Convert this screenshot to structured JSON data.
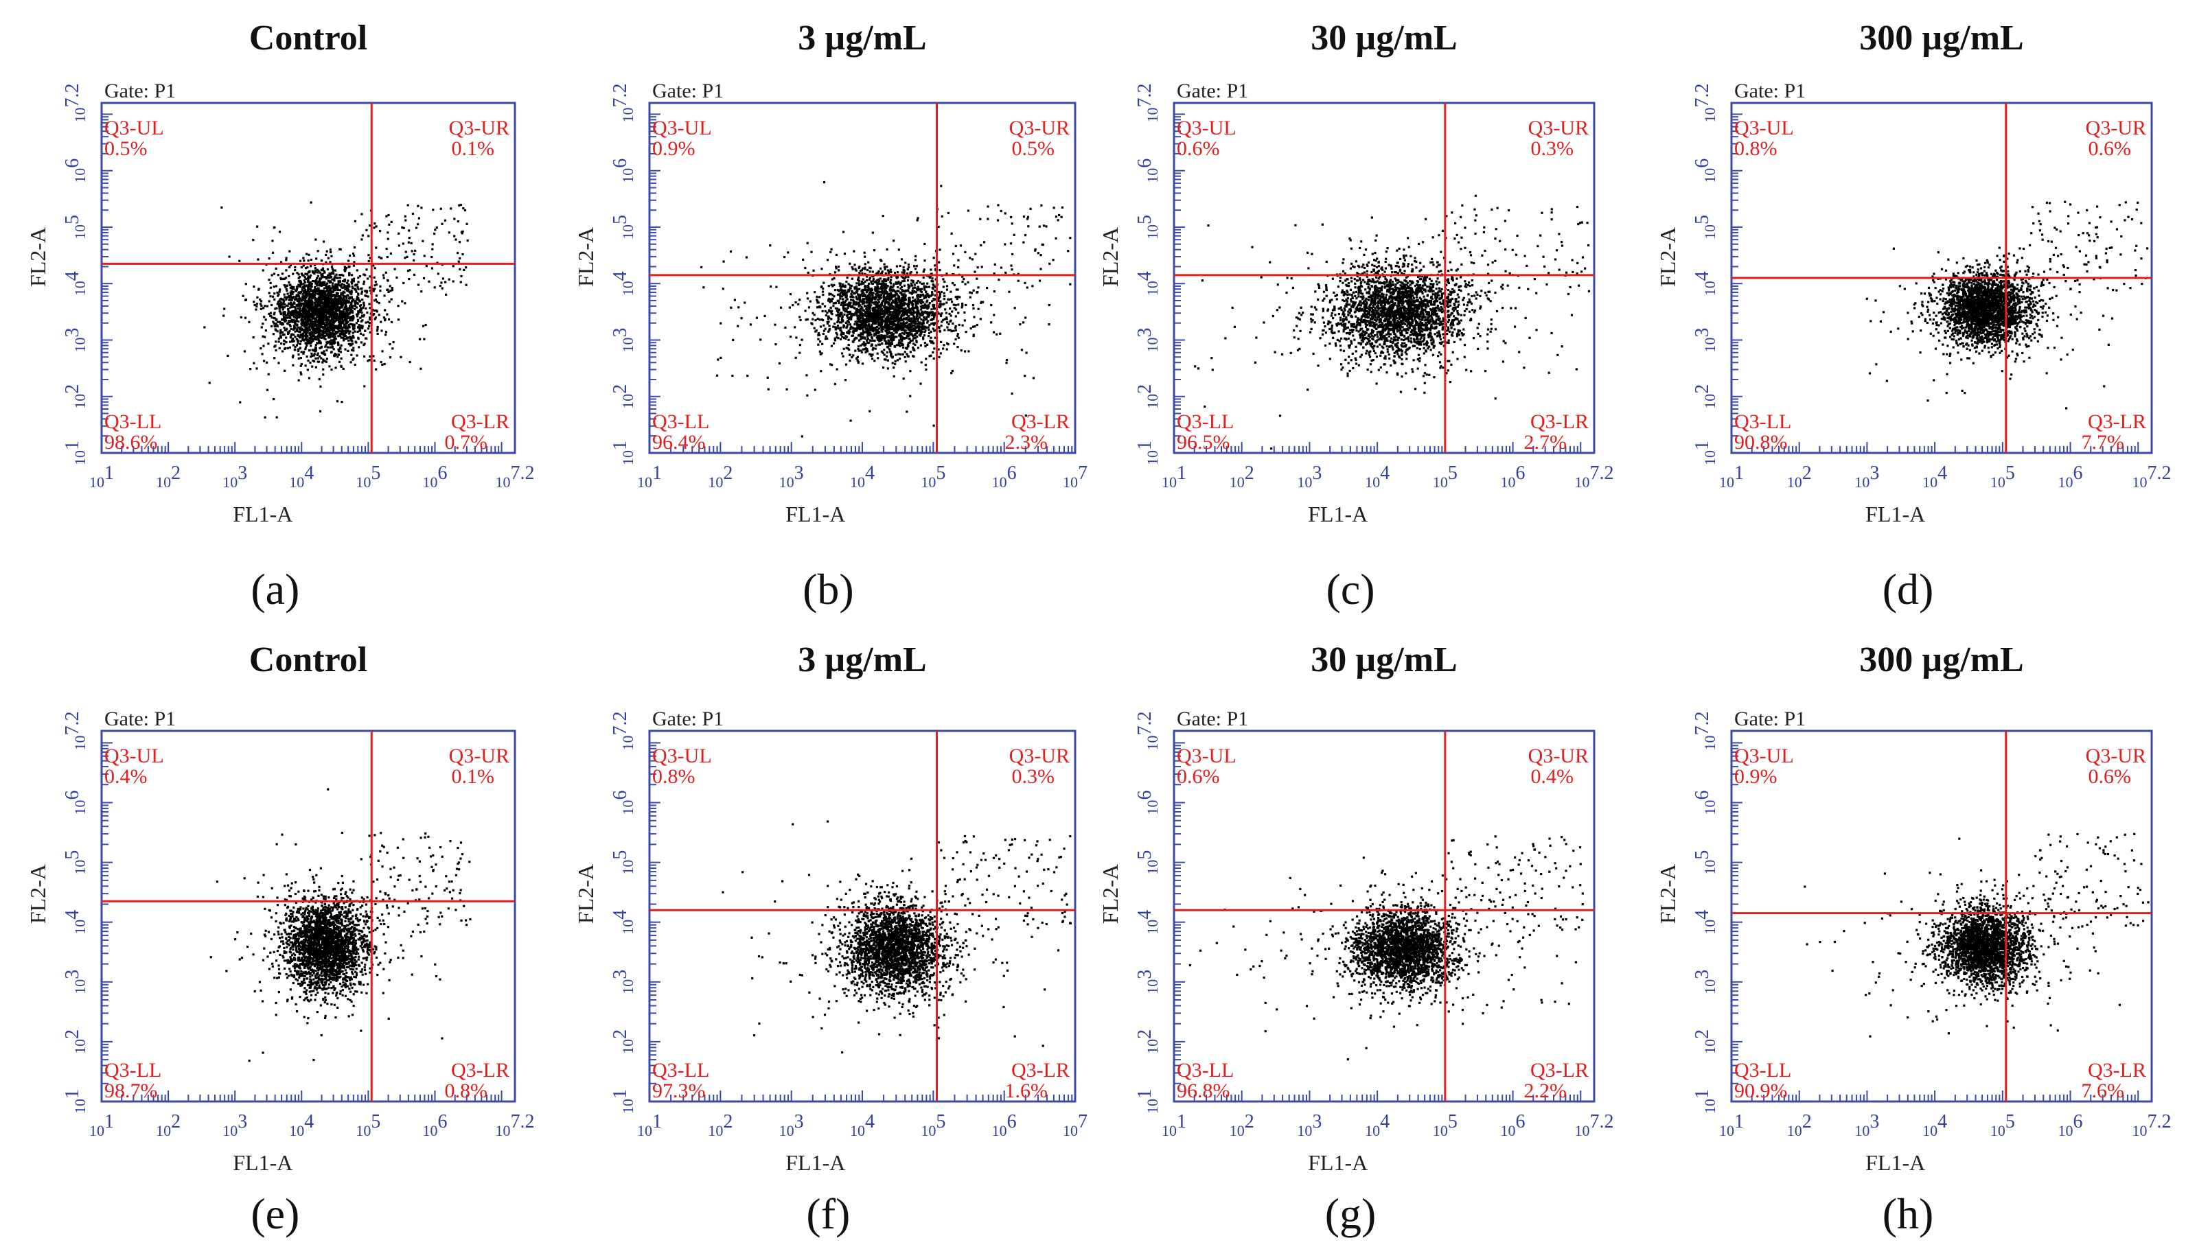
{
  "figure": {
    "caption": "Flow cytometry dot plots (FL1-A vs FL2-A) for control and three concentrations; two experiment rows.",
    "colors": {
      "gate": "#e11d1d",
      "axis": "#3b4aa8",
      "dots": "#000000",
      "text": "#111111"
    }
  },
  "chart_data": [
    {
      "type": "scatter",
      "panel": "(a)",
      "title": "Control",
      "gate": "Gate: P1",
      "xlabel": "FL1-A",
      "ylabel": "FL2-A",
      "x_ticks": [
        "1",
        "2",
        "3",
        "4",
        "5",
        "6",
        "7.2"
      ],
      "y_ticks": [
        "1",
        "2",
        "3",
        "4",
        "5",
        "6",
        "7.2"
      ],
      "xlim": [
        1,
        7.2
      ],
      "ylim": [
        1,
        7.2
      ],
      "quadrant_gate": {
        "x": 5.05,
        "y": 4.35
      },
      "quadrants": {
        "UL": {
          "label": "Q3-UL",
          "value": "0.5%"
        },
        "UR": {
          "label": "Q3-UR",
          "value": "0.1%"
        },
        "LL": {
          "label": "Q3-LL",
          "value": "98.6%"
        },
        "LR": {
          "label": "Q3-LR",
          "value": "0.7%"
        }
      },
      "cluster": {
        "cx": 4.3,
        "cy": 3.5,
        "sx": 0.35,
        "sy": 0.38,
        "spread": 1.0
      }
    },
    {
      "type": "scatter",
      "panel": "(b)",
      "title": "3 µg/mL",
      "gate": "Gate: P1",
      "xlabel": "FL1-A",
      "ylabel": "FL2-A",
      "x_ticks": [
        "1",
        "2",
        "3",
        "4",
        "5",
        "6",
        "7"
      ],
      "y_ticks": [
        "1",
        "2",
        "3",
        "4",
        "5",
        "6",
        "7.2"
      ],
      "xlim": [
        1,
        7
      ],
      "ylim": [
        1,
        7.2
      ],
      "quadrant_gate": {
        "x": 5.05,
        "y": 4.15
      },
      "quadrants": {
        "UL": {
          "label": "Q3-UL",
          "value": "0.9%"
        },
        "UR": {
          "label": "Q3-UR",
          "value": "0.5%"
        },
        "LL": {
          "label": "Q3-LL",
          "value": "96.4%"
        },
        "LR": {
          "label": "Q3-LR",
          "value": "2.3%"
        }
      },
      "cluster": {
        "cx": 4.35,
        "cy": 3.5,
        "sx": 0.45,
        "sy": 0.38,
        "spread": 1.4
      }
    },
    {
      "type": "scatter",
      "panel": "(c)",
      "title": "30 µg/mL",
      "gate": "Gate: P1",
      "xlabel": "FL1-A",
      "ylabel": "FL2-A",
      "x_ticks": [
        "1",
        "2",
        "3",
        "4",
        "5",
        "6",
        "7.2"
      ],
      "y_ticks": [
        "1",
        "2",
        "3",
        "4",
        "5",
        "6",
        "7.2"
      ],
      "xlim": [
        1,
        7.2
      ],
      "ylim": [
        1,
        7.2
      ],
      "quadrant_gate": {
        "x": 5.0,
        "y": 4.15
      },
      "quadrants": {
        "UL": {
          "label": "Q3-UL",
          "value": "0.6%"
        },
        "UR": {
          "label": "Q3-UR",
          "value": "0.3%"
        },
        "LL": {
          "label": "Q3-LL",
          "value": "96.5%"
        },
        "LR": {
          "label": "Q3-LR",
          "value": "2.7%"
        }
      },
      "cluster": {
        "cx": 4.3,
        "cy": 3.5,
        "sx": 0.5,
        "sy": 0.4,
        "spread": 1.6
      }
    },
    {
      "type": "scatter",
      "panel": "(d)",
      "title": "300 µg/mL",
      "gate": "Gate: P1",
      "xlabel": "FL1-A",
      "ylabel": "FL2-A",
      "x_ticks": [
        "1",
        "2",
        "3",
        "4",
        "5",
        "6",
        "7.2"
      ],
      "y_ticks": [
        "1",
        "2",
        "3",
        "4",
        "5",
        "6",
        "7.2"
      ],
      "xlim": [
        1,
        7.2
      ],
      "ylim": [
        1,
        7.2
      ],
      "quadrant_gate": {
        "x": 5.05,
        "y": 4.1
      },
      "quadrants": {
        "UL": {
          "label": "Q3-UL",
          "value": "0.8%"
        },
        "UR": {
          "label": "Q3-UR",
          "value": "0.6%"
        },
        "LL": {
          "label": "Q3-LL",
          "value": "90.8%"
        },
        "LR": {
          "label": "Q3-LR",
          "value": "7.7%"
        }
      },
      "cluster": {
        "cx": 4.75,
        "cy": 3.55,
        "sx": 0.32,
        "sy": 0.32,
        "spread": 1.2
      }
    },
    {
      "type": "scatter",
      "panel": "(e)",
      "title": "Control",
      "gate": "Gate: P1",
      "xlabel": "FL1-A",
      "ylabel": "FL2-A",
      "x_ticks": [
        "1",
        "2",
        "3",
        "4",
        "5",
        "6",
        "7.2"
      ],
      "y_ticks": [
        "1",
        "2",
        "3",
        "4",
        "5",
        "6",
        "7.2"
      ],
      "xlim": [
        1,
        7.2
      ],
      "ylim": [
        1,
        7.2
      ],
      "quadrant_gate": {
        "x": 5.05,
        "y": 4.35
      },
      "quadrants": {
        "UL": {
          "label": "Q3-UL",
          "value": "0.4%"
        },
        "UR": {
          "label": "Q3-UR",
          "value": "0.1%"
        },
        "LL": {
          "label": "Q3-LL",
          "value": "98.7%"
        },
        "LR": {
          "label": "Q3-LR",
          "value": "0.8%"
        }
      },
      "cluster": {
        "cx": 4.35,
        "cy": 3.6,
        "sx": 0.3,
        "sy": 0.38,
        "spread": 1.0
      }
    },
    {
      "type": "scatter",
      "panel": "(f)",
      "title": "3 µg/mL",
      "gate": "Gate: P1",
      "xlabel": "FL1-A",
      "ylabel": "FL2-A",
      "x_ticks": [
        "1",
        "2",
        "3",
        "4",
        "5",
        "6",
        "7"
      ],
      "y_ticks": [
        "1",
        "2",
        "3",
        "4",
        "5",
        "6",
        "7.2"
      ],
      "xlim": [
        1,
        7
      ],
      "ylim": [
        1,
        7.2
      ],
      "quadrant_gate": {
        "x": 5.05,
        "y": 4.2
      },
      "quadrants": {
        "UL": {
          "label": "Q3-UL",
          "value": "0.8%"
        },
        "UR": {
          "label": "Q3-UR",
          "value": "0.3%"
        },
        "LL": {
          "label": "Q3-LL",
          "value": "97.3%"
        },
        "LR": {
          "label": "Q3-LR",
          "value": "1.6%"
        }
      },
      "cluster": {
        "cx": 4.45,
        "cy": 3.55,
        "sx": 0.35,
        "sy": 0.38,
        "spread": 1.2
      }
    },
    {
      "type": "scatter",
      "panel": "(g)",
      "title": "30 µg/mL",
      "gate": "Gate: P1",
      "xlabel": "FL1-A",
      "ylabel": "FL2-A",
      "x_ticks": [
        "1",
        "2",
        "3",
        "4",
        "5",
        "6",
        "7.2"
      ],
      "y_ticks": [
        "1",
        "2",
        "3",
        "4",
        "5",
        "6",
        "7.2"
      ],
      "xlim": [
        1,
        7.2
      ],
      "ylim": [
        1,
        7.2
      ],
      "quadrant_gate": {
        "x": 5.0,
        "y": 4.2
      },
      "quadrants": {
        "UL": {
          "label": "Q3-UL",
          "value": "0.6%"
        },
        "UR": {
          "label": "Q3-UR",
          "value": "0.4%"
        },
        "LL": {
          "label": "Q3-LL",
          "value": "96.8%"
        },
        "LR": {
          "label": "Q3-LR",
          "value": "2.2%"
        }
      },
      "cluster": {
        "cx": 4.4,
        "cy": 3.55,
        "sx": 0.38,
        "sy": 0.33,
        "spread": 1.5
      }
    },
    {
      "type": "scatter",
      "panel": "(h)",
      "title": "300 µg/mL",
      "gate": "Gate: P1",
      "xlabel": "FL1-A",
      "ylabel": "FL2-A",
      "x_ticks": [
        "1",
        "2",
        "3",
        "4",
        "5",
        "6",
        "7.2"
      ],
      "y_ticks": [
        "1",
        "2",
        "3",
        "4",
        "5",
        "6",
        "7.2"
      ],
      "xlim": [
        1,
        7.2
      ],
      "ylim": [
        1,
        7.2
      ],
      "quadrant_gate": {
        "x": 5.05,
        "y": 4.15
      },
      "quadrants": {
        "UL": {
          "label": "Q3-UL",
          "value": "0.9%"
        },
        "UR": {
          "label": "Q3-UR",
          "value": "0.6%"
        },
        "LL": {
          "label": "Q3-LL",
          "value": "90.9%"
        },
        "LR": {
          "label": "Q3-LR",
          "value": "7.6%"
        }
      },
      "cluster": {
        "cx": 4.75,
        "cy": 3.6,
        "sx": 0.32,
        "sy": 0.32,
        "spread": 1.3
      }
    }
  ]
}
